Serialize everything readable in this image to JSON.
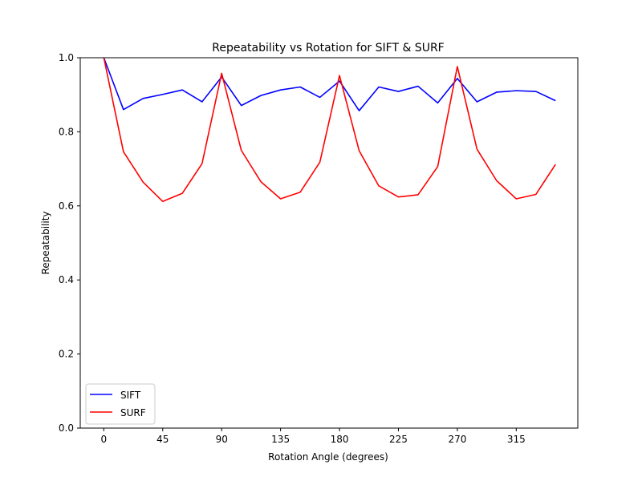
{
  "chart_data": {
    "type": "line",
    "title": "Repeatability vs Rotation for SIFT & SURF",
    "xlabel": "Rotation Angle (degrees)",
    "ylabel": "Repeatability",
    "xlim": [
      -18,
      362
    ],
    "ylim": [
      0,
      1
    ],
    "xticks": [
      0,
      45,
      90,
      135,
      180,
      225,
      270,
      315
    ],
    "yticks": [
      0.0,
      0.2,
      0.4,
      0.6,
      0.8,
      1.0
    ],
    "ytick_labels": [
      "0.0",
      "0.2",
      "0.4",
      "0.6",
      "0.8",
      "1.0"
    ],
    "x": [
      0,
      15,
      30,
      45,
      60,
      75,
      90,
      105,
      120,
      135,
      150,
      165,
      180,
      195,
      210,
      225,
      240,
      255,
      270,
      285,
      300,
      315,
      330,
      345
    ],
    "series": [
      {
        "name": "SIFT",
        "color": "#0000ff",
        "values": [
          1.0,
          0.86,
          0.89,
          0.901,
          0.913,
          0.881,
          0.948,
          0.871,
          0.898,
          0.913,
          0.921,
          0.893,
          0.937,
          0.857,
          0.921,
          0.909,
          0.923,
          0.878,
          0.944,
          0.881,
          0.907,
          0.911,
          0.909,
          0.884
        ]
      },
      {
        "name": "SURF",
        "color": "#ff0000",
        "values": [
          1.0,
          0.746,
          0.664,
          0.612,
          0.634,
          0.714,
          0.958,
          0.75,
          0.665,
          0.619,
          0.637,
          0.718,
          0.952,
          0.749,
          0.654,
          0.624,
          0.63,
          0.706,
          0.976,
          0.753,
          0.668,
          0.619,
          0.631,
          0.712
        ]
      }
    ],
    "grid": false,
    "legend_position": "lower-left"
  }
}
